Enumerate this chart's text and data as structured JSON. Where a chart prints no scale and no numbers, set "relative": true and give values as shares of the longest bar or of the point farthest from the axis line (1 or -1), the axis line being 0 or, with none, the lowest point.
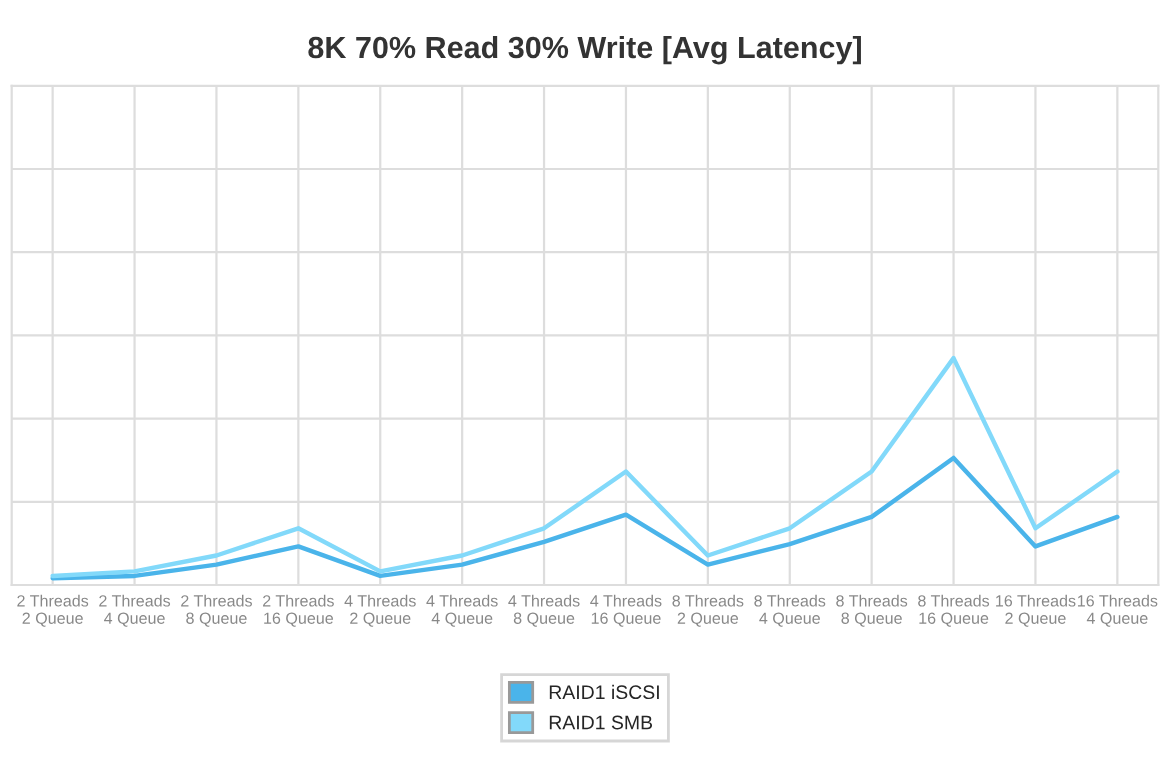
{
  "chart_data": {
    "type": "line",
    "title": "8K 70% Read 30% Write [Avg Latency]",
    "categories": [
      "2 Threads\n2 Queue",
      "2 Threads\n4 Queue",
      "2 Threads\n8 Queue",
      "2 Threads\n16 Queue",
      "4 Threads\n2 Queue",
      "4 Threads\n4 Queue",
      "4 Threads\n8 Queue",
      "4 Threads\n16 Queue",
      "8 Threads\n2 Queue",
      "8 Threads\n4 Queue",
      "8 Threads\n8 Queue",
      "8 Threads\n16 Queue",
      "16 Threads\n2 Queue",
      "16 Threads\n4 Queue"
    ],
    "relative": true,
    "series": [
      {
        "name": "RAID1 iSCSI",
        "color": "#4ab4ea",
        "values": [
          0.03,
          0.04,
          0.09,
          0.17,
          0.04,
          0.09,
          0.19,
          0.31,
          0.09,
          0.18,
          0.3,
          0.56,
          0.17,
          0.3
        ]
      },
      {
        "name": "RAID1 SMB",
        "color": "#82d9fa",
        "values": [
          0.04,
          0.06,
          0.13,
          0.25,
          0.06,
          0.13,
          0.25,
          0.5,
          0.13,
          0.25,
          0.5,
          1,
          0.25,
          0.5
        ]
      }
    ],
    "grid": true,
    "legend": "bottom",
    "marker": "none",
    "line_style": "solid"
  }
}
